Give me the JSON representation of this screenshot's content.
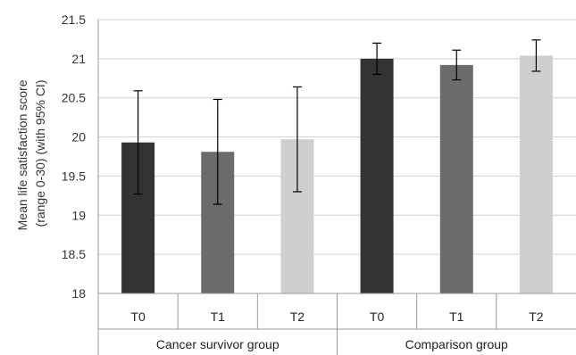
{
  "chart_data": {
    "type": "bar",
    "ylabel_lines": [
      "Mean life satisfaction score",
      "(range 0-30) (with 95% CI)"
    ],
    "ylim": [
      18,
      21.5
    ],
    "yticks": [
      "18",
      "18.5",
      "19",
      "19.5",
      "20",
      "20.5",
      "21",
      "21.5"
    ],
    "grid": true,
    "groups": [
      {
        "name": "Cancer survivor group",
        "bars": [
          {
            "label": "T0",
            "value": 19.93,
            "ci_low": 19.27,
            "ci_high": 20.59,
            "color": "#333333"
          },
          {
            "label": "T1",
            "value": 19.81,
            "ci_low": 19.14,
            "ci_high": 20.48,
            "color": "#6b6b6b"
          },
          {
            "label": "T2",
            "value": 19.97,
            "ci_low": 19.3,
            "ci_high": 20.64,
            "color": "#cfcfcf"
          }
        ]
      },
      {
        "name": "Comparison group",
        "bars": [
          {
            "label": "T0",
            "value": 21.0,
            "ci_low": 20.8,
            "ci_high": 21.2,
            "color": "#333333"
          },
          {
            "label": "T1",
            "value": 20.92,
            "ci_low": 20.73,
            "ci_high": 21.11,
            "color": "#6b6b6b"
          },
          {
            "label": "T2",
            "value": 21.04,
            "ci_low": 20.84,
            "ci_high": 21.24,
            "color": "#cfcfcf"
          }
        ]
      }
    ]
  }
}
